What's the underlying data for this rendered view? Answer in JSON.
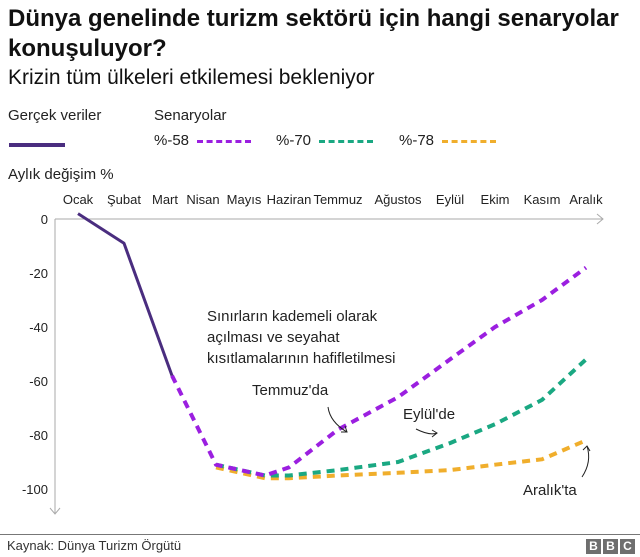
{
  "header": {
    "title": "Dünya genelinde turizm sektörü için hangi senaryolar konuşuluyor?",
    "subtitle": "Krizin tüm ülkeleri etkilemesi bekleniyor"
  },
  "legend": {
    "actual_label": "Gerçek veriler",
    "scenarios_label": "Senaryolar",
    "items": [
      {
        "label": "%-58",
        "color": "#9b1fe0"
      },
      {
        "label": "%-70",
        "color": "#1aa882"
      },
      {
        "label": "%-78",
        "color": "#f0ae2c"
      }
    ],
    "actual_color": "#4a2d7f"
  },
  "annotations": {
    "main": [
      "Sınırların kademeli olarak",
      "açılması ve seyahat",
      "kısıtlamalarının hafifletilmesi"
    ],
    "temmuz": "Temmuz'da",
    "eylul": "Eylül'de",
    "aralik": "Aralık'ta"
  },
  "footer": {
    "source": "Kaynak: Dünya Turizm Örgütü",
    "logo": [
      "B",
      "B",
      "C"
    ]
  },
  "chart_data": {
    "type": "line",
    "title": "Dünya genelinde turizm sektörü için hangi senaryolar konuşuluyor?",
    "subtitle": "Krizin tüm ülkeleri etkilemesi bekleniyor",
    "xlabel": "",
    "ylabel": "Aylık değişim %",
    "categories": [
      "Ocak",
      "Şubat",
      "Mart",
      "Nisan",
      "Mayıs",
      "Haziran",
      "Temmuz",
      "Ağustos",
      "Eylül",
      "Ekim",
      "Kasım",
      "Aralık"
    ],
    "yticks": [
      0,
      -20,
      -40,
      -60,
      -80,
      -100
    ],
    "ylim": [
      -110,
      5
    ],
    "grid": false,
    "legend_position": "top",
    "series": [
      {
        "name": "Gerçek veriler",
        "style": "solid",
        "color": "#4a2d7f",
        "values": [
          2,
          -9,
          -58,
          null,
          null,
          null,
          null,
          null,
          null,
          null,
          null,
          null
        ]
      },
      {
        "name": "%-58",
        "style": "dashed",
        "color": "#9b1fe0",
        "values": [
          null,
          null,
          -58,
          -91,
          -95,
          -92,
          -78,
          -66,
          -52,
          -40,
          -30,
          -18
        ]
      },
      {
        "name": "%-70",
        "style": "dashed",
        "color": "#1aa882",
        "values": [
          null,
          null,
          null,
          -91,
          -95,
          -95,
          -93,
          -90,
          -83,
          -76,
          -67,
          -52
        ]
      },
      {
        "name": "%-78",
        "style": "dashed",
        "color": "#f0ae2c",
        "values": [
          null,
          null,
          null,
          -92,
          -96,
          -96,
          -95,
          -94,
          -93,
          -91,
          -89,
          -82
        ]
      }
    ],
    "annotations": [
      {
        "text": "Sınırların kademeli olarak açılması ve seyahat kısıtlamalarının hafifletilmesi"
      },
      {
        "text": "Temmuz'da",
        "series": "%-58"
      },
      {
        "text": "Eylül'de",
        "series": "%-70"
      },
      {
        "text": "Aralık'ta",
        "series": "%-78"
      }
    ]
  }
}
